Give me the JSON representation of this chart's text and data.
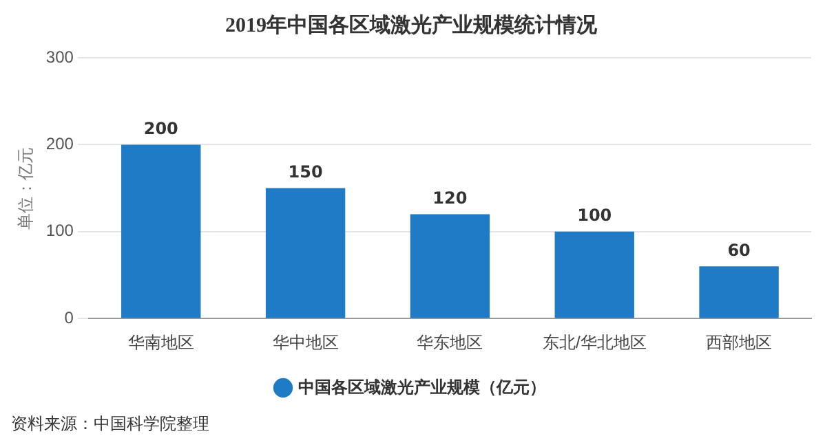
{
  "chart_data": {
    "type": "bar",
    "title": "2019年中国各区域激光产业规模统计情况",
    "ylabel": "单位：亿元",
    "categories": [
      "华南地区",
      "华中地区",
      "华东地区",
      "东北/华北地区",
      "西部地区"
    ],
    "series": [
      {
        "name": "中国各区域激光产业规模（亿元）",
        "color": "#1f7bc6",
        "values": [
          200,
          150,
          120,
          100,
          60
        ]
      }
    ],
    "ylim": [
      0,
      300
    ],
    "yticks": [
      0,
      100,
      200,
      300
    ],
    "grid": "y",
    "legend": "bottom",
    "data_labels": true,
    "annotations": [
      "资料来源：中国科学院整理"
    ]
  }
}
